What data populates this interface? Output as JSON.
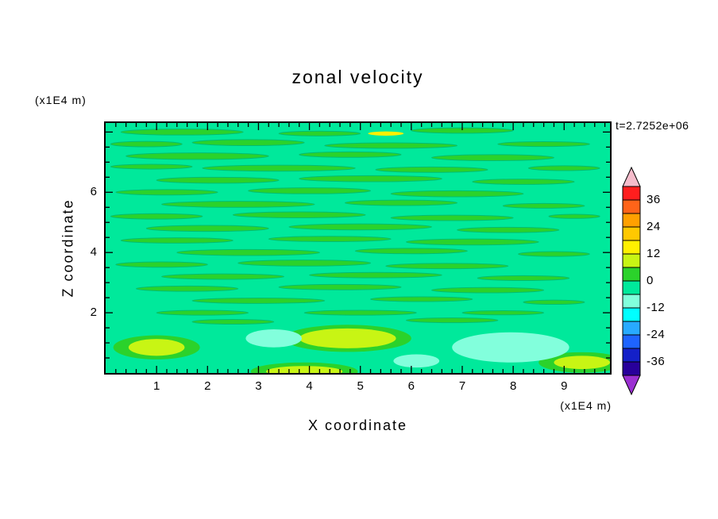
{
  "chart_data": {
    "type": "heatmap",
    "subtype": "filled-contour",
    "title": "zonal velocity",
    "xlabel": "X coordinate",
    "ylabel": "Z coordinate",
    "x_units": "(x1E4 m)",
    "z_units": "(x1E4 m)",
    "timestamp": "t=2.7252e+06",
    "x_range": [
      0,
      9.9
    ],
    "z_range": [
      0,
      8.3
    ],
    "x_ticks": [
      1,
      2,
      3,
      4,
      5,
      6,
      7,
      8,
      9
    ],
    "z_ticks": [
      2,
      4,
      6
    ],
    "x_minor_step": 0.2,
    "z_minor_step": 0.5,
    "grid": false,
    "legend_position": "right-colorbar",
    "colorbar": {
      "labels": [
        36,
        24,
        12,
        0,
        -12,
        -24,
        -36
      ],
      "level_step": 6,
      "levels": [
        42,
        36,
        30,
        24,
        18,
        12,
        6,
        0,
        -6,
        -12,
        -18,
        -24,
        -30,
        -36,
        -42
      ],
      "cell_colors_top_to_bottom": [
        "#FF1E1E",
        "#FF6419",
        "#FFA000",
        "#FFC800",
        "#FFF000",
        "#C8F514",
        "#2BD22B",
        "#00E99B",
        "#82FFDC",
        "#00FFFF",
        "#28AAFF",
        "#1E64FF",
        "#1420C8",
        "#28009B"
      ],
      "arrow_top_color": "#F5BCCB",
      "arrow_bottom_color": "#9B30D2"
    },
    "field": {
      "description": "zonal velocity field mostly near zero (-6 to 0 band, spring green); horizontal streaky contours of the 0-6 band (green) across the upper region; small positive yellow-green patches and negative pale-cyan patches in the bottom layer below z=2; tiny yellow patch near the top around x=5.5",
      "background_color": "#00E99B",
      "streak_color": "#2BD22B",
      "streak_stroke": "#00BE72",
      "streaks": [
        [
          1.5,
          8.0,
          1.2,
          0.1
        ],
        [
          4.2,
          7.95,
          0.8,
          0.08
        ],
        [
          7.0,
          8.05,
          1.0,
          0.09
        ],
        [
          0.8,
          7.6,
          0.7,
          0.09
        ],
        [
          2.8,
          7.65,
          1.1,
          0.1
        ],
        [
          5.6,
          7.55,
          1.3,
          0.09
        ],
        [
          8.6,
          7.6,
          0.9,
          0.08
        ],
        [
          1.8,
          7.2,
          1.4,
          0.11
        ],
        [
          4.8,
          7.25,
          1.0,
          0.09
        ],
        [
          7.6,
          7.15,
          1.2,
          0.1
        ],
        [
          0.9,
          6.85,
          0.8,
          0.08
        ],
        [
          3.4,
          6.8,
          1.5,
          0.1
        ],
        [
          6.4,
          6.75,
          1.1,
          0.09
        ],
        [
          9.0,
          6.8,
          0.7,
          0.08
        ],
        [
          2.2,
          6.4,
          1.2,
          0.1
        ],
        [
          5.2,
          6.45,
          1.4,
          0.1
        ],
        [
          8.2,
          6.35,
          1.0,
          0.09
        ],
        [
          1.2,
          6.0,
          1.0,
          0.09
        ],
        [
          4.0,
          6.05,
          1.2,
          0.1
        ],
        [
          6.9,
          5.95,
          1.3,
          0.1
        ],
        [
          2.6,
          5.6,
          1.5,
          0.1
        ],
        [
          5.8,
          5.65,
          1.1,
          0.09
        ],
        [
          8.6,
          5.55,
          0.8,
          0.08
        ],
        [
          1.0,
          5.2,
          0.9,
          0.09
        ],
        [
          3.8,
          5.25,
          1.3,
          0.1
        ],
        [
          6.8,
          5.15,
          1.2,
          0.09
        ],
        [
          9.2,
          5.2,
          0.5,
          0.07
        ],
        [
          2.0,
          4.8,
          1.2,
          0.1
        ],
        [
          5.0,
          4.85,
          1.4,
          0.1
        ],
        [
          7.9,
          4.75,
          1.0,
          0.09
        ],
        [
          1.4,
          4.4,
          1.1,
          0.09
        ],
        [
          4.4,
          4.45,
          1.2,
          0.09
        ],
        [
          7.2,
          4.35,
          1.3,
          0.1
        ],
        [
          2.8,
          4.0,
          1.4,
          0.1
        ],
        [
          6.0,
          4.05,
          1.1,
          0.09
        ],
        [
          8.8,
          3.95,
          0.7,
          0.08
        ],
        [
          1.1,
          3.6,
          0.9,
          0.09
        ],
        [
          3.9,
          3.65,
          1.3,
          0.1
        ],
        [
          6.7,
          3.55,
          1.2,
          0.09
        ],
        [
          2.3,
          3.2,
          1.2,
          0.09
        ],
        [
          5.3,
          3.25,
          1.3,
          0.09
        ],
        [
          8.2,
          3.15,
          0.9,
          0.08
        ],
        [
          1.6,
          2.8,
          1.0,
          0.09
        ],
        [
          4.6,
          2.85,
          1.2,
          0.09
        ],
        [
          7.5,
          2.75,
          1.1,
          0.09
        ],
        [
          3.0,
          2.4,
          1.3,
          0.09
        ],
        [
          6.2,
          2.45,
          1.0,
          0.08
        ],
        [
          8.8,
          2.35,
          0.6,
          0.07
        ],
        [
          1.9,
          2.0,
          0.9,
          0.08
        ],
        [
          5.0,
          2.0,
          1.1,
          0.08
        ],
        [
          7.8,
          2.0,
          0.8,
          0.07
        ],
        [
          2.5,
          1.7,
          0.8,
          0.08
        ],
        [
          6.8,
          1.75,
          0.9,
          0.08
        ]
      ],
      "features": [
        {
          "x": 1.0,
          "z": 0.85,
          "rx": 0.55,
          "rz": 0.28,
          "color": "#C8F514",
          "ring": true
        },
        {
          "x": 4.75,
          "z": 1.15,
          "rx": 0.95,
          "rz": 0.33,
          "color": "#C8F514",
          "ring": true
        },
        {
          "x": 9.35,
          "z": 0.35,
          "rx": 0.55,
          "rz": 0.22,
          "color": "#C8F514",
          "ring": true
        },
        {
          "x": 3.9,
          "z": 0.05,
          "rx": 0.75,
          "rz": 0.18,
          "color": "#C8F514",
          "ring": true
        },
        {
          "x": 3.3,
          "z": 1.15,
          "rx": 0.55,
          "rz": 0.3,
          "color": "#82FFDC"
        },
        {
          "x": 7.95,
          "z": 0.85,
          "rx": 1.15,
          "rz": 0.5,
          "color": "#82FFDC"
        },
        {
          "x": 6.1,
          "z": 0.4,
          "rx": 0.45,
          "rz": 0.22,
          "color": "#82FFDC"
        },
        {
          "x": 5.5,
          "z": 7.95,
          "rx": 0.35,
          "rz": 0.07,
          "color": "#FFF000"
        }
      ]
    }
  }
}
